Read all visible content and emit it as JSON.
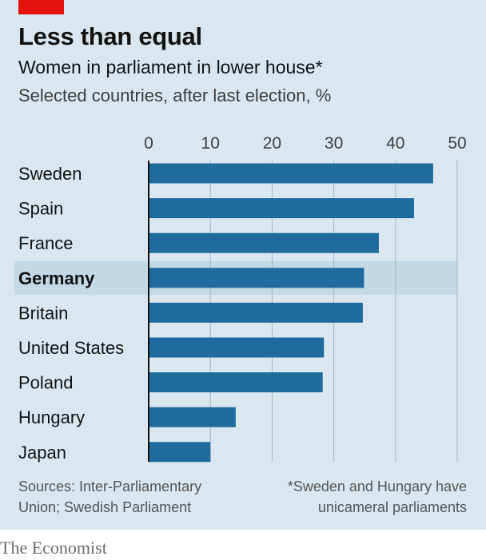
{
  "header": {
    "title": "Less than equal",
    "subtitle": "Women in parliament in lower house*",
    "subsubtitle": "Selected countries, after last election, %"
  },
  "footer": {
    "source_line1": "Sources: Inter-Parliamentary",
    "source_line2": "Union; Swedish Parliament",
    "note_line1": "*Sweden and Hungary have",
    "note_line2": "unicameral parliaments",
    "brand": "The Economist"
  },
  "colors": {
    "background": "#dae7f0",
    "bar": "#1f6b9e",
    "highlight_band": "#c3d9e6",
    "accent_red": "#e3120b",
    "gridline": "#9fb4c2",
    "axis": "#121212"
  },
  "chart_data": {
    "type": "bar",
    "orientation": "horizontal",
    "title": "Less than equal",
    "subtitle": "Women in parliament in lower house*",
    "categories": [
      "Sweden",
      "Spain",
      "France",
      "Germany",
      "Britain",
      "United States",
      "Poland",
      "Hungary",
      "Japan"
    ],
    "values": [
      46.1,
      43.0,
      37.3,
      34.9,
      34.7,
      28.4,
      28.2,
      14.1,
      10.0
    ],
    "highlight": "Germany",
    "xlim": [
      0,
      50
    ],
    "ticks": [
      0,
      10,
      20,
      30,
      40,
      50
    ],
    "tick_labels": [
      "0",
      "10",
      "20",
      "30",
      "40",
      "50"
    ],
    "xaxis_position": "top",
    "grid": true,
    "legend": "none"
  }
}
